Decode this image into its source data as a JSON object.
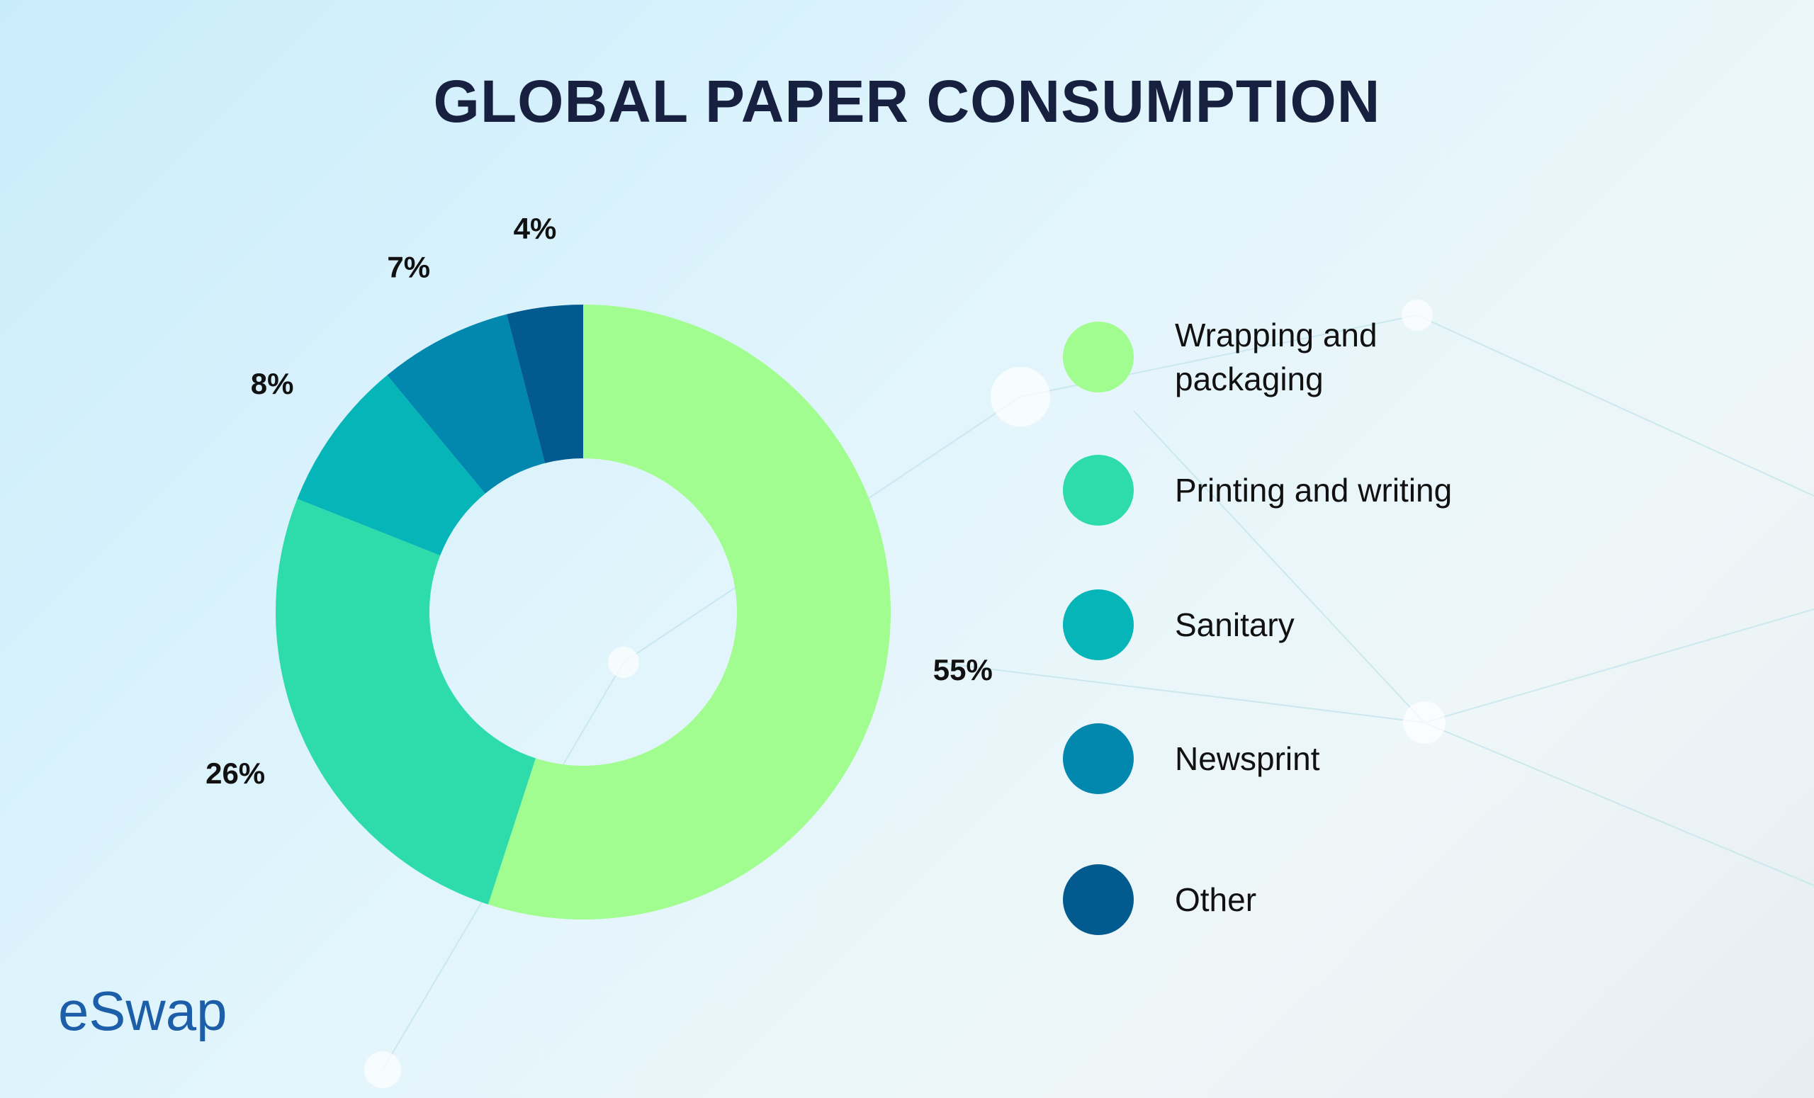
{
  "chart_data": {
    "type": "pie",
    "title": "GLOBAL PAPER CONSUMPTION",
    "categories": [
      "Wrapping and packaging",
      "Printing and writing",
      "Sanitary",
      "Newsprint",
      "Other"
    ],
    "values": [
      55,
      26,
      8,
      7,
      4
    ],
    "value_labels": [
      "55%",
      "26%",
      "8%",
      "7%",
      "4%"
    ],
    "colors": [
      "#a2fd90",
      "#2ddcaa",
      "#05b5b8",
      "#0288ae",
      "#025a8e"
    ],
    "donut": true,
    "legend": "right"
  },
  "brand": "eSwap"
}
